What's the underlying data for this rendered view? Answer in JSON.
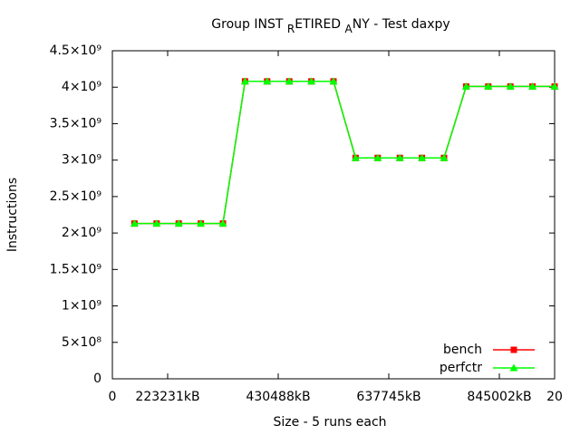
{
  "chart_data": {
    "type": "line",
    "title": [
      "Group INST ",
      "R",
      "ETIRED ",
      "A",
      "NY - Test daxpy"
    ],
    "x_label": "Size - 5 runs each",
    "y_label": "Instructions",
    "x": [
      1,
      2,
      3,
      4,
      5,
      6,
      7,
      8,
      9,
      10,
      11,
      12,
      13,
      14,
      15,
      16,
      17,
      18,
      19,
      20
    ],
    "series": [
      {
        "name": "bench",
        "color": "#ff0000",
        "marker": "square",
        "values": [
          2130000000,
          2130000000,
          2130000000,
          2130000000,
          2130000000,
          4080000000,
          4080000000,
          4080000000,
          4080000000,
          4080000000,
          3030000000,
          3030000000,
          3030000000,
          3030000000,
          3030000000,
          4010000000,
          4010000000,
          4010000000,
          4010000000,
          4010000000
        ]
      },
      {
        "name": "perfctr",
        "color": "#00ff00",
        "marker": "triangle",
        "values": [
          2130000000,
          2130000000,
          2130000000,
          2130000000,
          2130000000,
          4080000000,
          4080000000,
          4080000000,
          4080000000,
          4080000000,
          3030000000,
          3030000000,
          3030000000,
          3030000000,
          3030000000,
          4010000000,
          4010000000,
          4010000000,
          4010000000,
          4010000000
        ]
      }
    ],
    "xlim": [
      0,
      20
    ],
    "xticks": [
      0,
      {
        "value": 2.5,
        "label": "223231kB"
      },
      {
        "value": 7.5,
        "label": "430488kB"
      },
      {
        "value": 12.5,
        "label": "637745kB"
      },
      {
        "value": 17.5,
        "label": "845002kB"
      },
      20
    ],
    "ylim": [
      0,
      4500000000
    ],
    "yticks": [
      0,
      {
        "value": 500000000,
        "label": "5×10⁸"
      },
      {
        "value": 1000000000,
        "label": "1×10⁹"
      },
      {
        "value": 1500000000,
        "label": "1.5×10⁹"
      },
      {
        "value": 2000000000,
        "label": "2×10⁹"
      },
      {
        "value": 2500000000,
        "label": "2.5×10⁹"
      },
      {
        "value": 3000000000,
        "label": "3×10⁹"
      },
      {
        "value": 3500000000,
        "label": "3.5×10⁹"
      },
      {
        "value": 4000000000,
        "label": "4×10⁹"
      },
      {
        "value": 4500000000,
        "label": "4.5×10⁹"
      }
    ],
    "legend": "lower right",
    "grid": false
  }
}
